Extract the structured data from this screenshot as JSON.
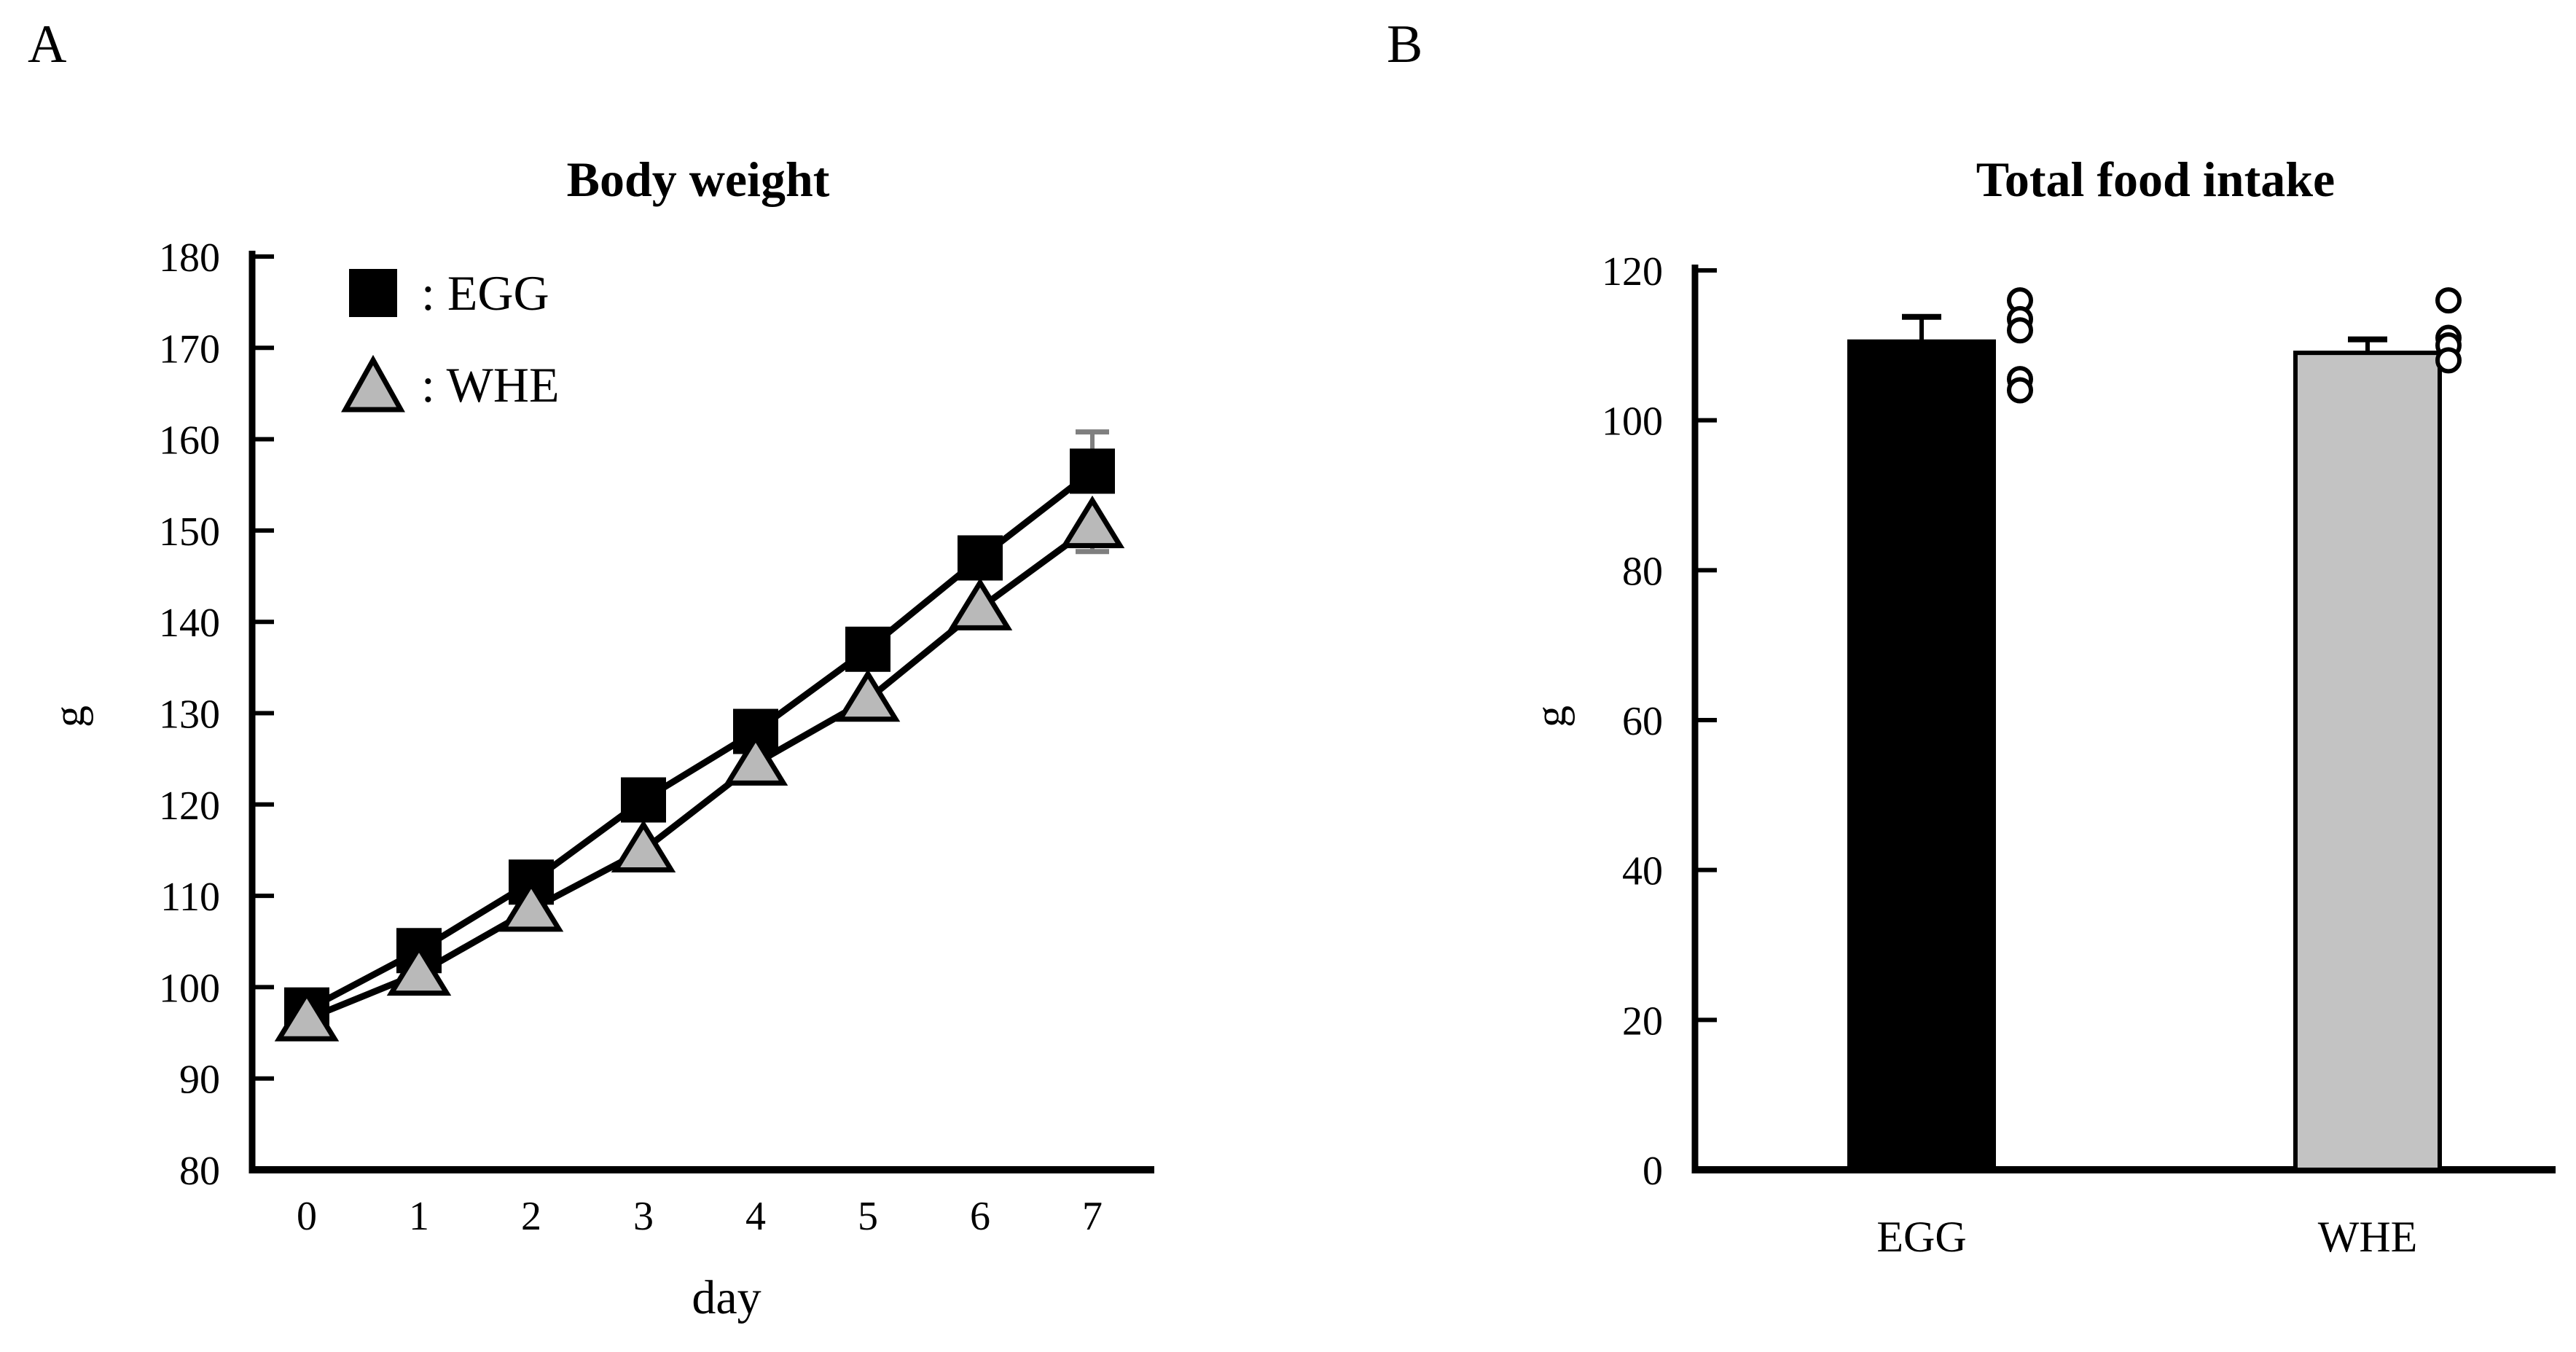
{
  "figure": {
    "background": "#ffffff",
    "accent_black": "#000000",
    "gray_fill": "#b9b9b9",
    "bar_gray_fill": "#c3c3c3",
    "error_cap_gray": "#7f7f7f"
  },
  "chart_data": [
    {
      "type": "line",
      "panel_label": "A",
      "title": "Body weight",
      "xlabel": "day",
      "ylabel": "g",
      "x": [
        0,
        1,
        2,
        3,
        4,
        5,
        6,
        7
      ],
      "xlim": [
        0,
        7
      ],
      "ylim": [
        80,
        180
      ],
      "yticks": [
        80,
        90,
        100,
        110,
        120,
        130,
        140,
        150,
        160,
        170,
        180
      ],
      "grid": "off",
      "legend_position": "top-left-inside",
      "legend": [
        {
          "label": ": EGG",
          "marker": "filled-square",
          "color": "#000000"
        },
        {
          "label": ": WHE",
          "marker": "filled-triangle",
          "color": "#b9b9b9"
        }
      ],
      "series": [
        {
          "name": "EGG",
          "marker": "square",
          "color": "#000000",
          "values": [
            97.5,
            104,
            111.5,
            120.5,
            128,
            137,
            147,
            156.5
          ],
          "errors_up": [
            0,
            0,
            0,
            0,
            0,
            0,
            0,
            4.3
          ],
          "errors_down": [
            0,
            0,
            0,
            0,
            0,
            0,
            0,
            0
          ]
        },
        {
          "name": "WHE",
          "marker": "triangle",
          "color": "#b9b9b9",
          "values": [
            96.5,
            101.5,
            108.5,
            115,
            124.5,
            131.5,
            141.5,
            150.5
          ],
          "errors_up": [
            0,
            0,
            0,
            0,
            0,
            0,
            0,
            0
          ],
          "errors_down": [
            0,
            0,
            0,
            0,
            0,
            0,
            0,
            2.8
          ]
        }
      ]
    },
    {
      "type": "bar",
      "panel_label": "B",
      "title": "Total food intake",
      "xlabel": "",
      "ylabel": "g",
      "categories": [
        "EGG",
        "WHE"
      ],
      "values": [
        110.5,
        109
      ],
      "errors_up": [
        3.3,
        1.8
      ],
      "bar_colors": [
        "#000000",
        "#c3c3c3"
      ],
      "scatter_points": [
        [
          116,
          113.5,
          112,
          105.5,
          104
        ],
        [
          116,
          111,
          110,
          108
        ]
      ],
      "ylim": [
        0,
        120
      ],
      "yticks": [
        0,
        20,
        40,
        60,
        80,
        100,
        120
      ],
      "grid": "off"
    }
  ]
}
